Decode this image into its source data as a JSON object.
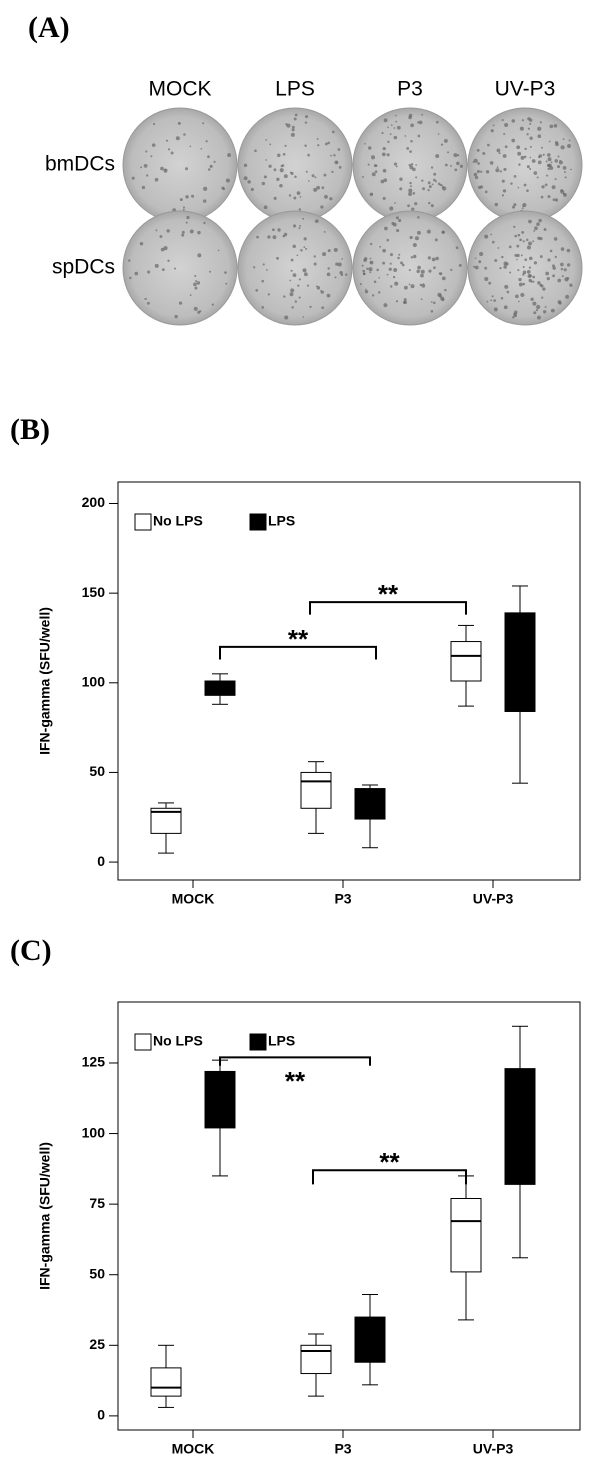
{
  "panel_labels": [
    "(A)",
    "(B)",
    "(C)"
  ],
  "panel_a": {
    "columns": [
      "MOCK",
      "LPS",
      "P3",
      "UV-P3"
    ],
    "rows": [
      "bmDCs",
      "spDCs"
    ]
  },
  "chart_data": [
    {
      "type": "box",
      "y_label": "IFN-gamma (SFU/well)",
      "categories": [
        "MOCK",
        "P3",
        "UV-P3"
      ],
      "series": [
        {
          "name": "No LPS",
          "color": "#ffffff",
          "min": [
            5,
            16,
            87
          ],
          "q1": [
            16,
            30,
            101
          ],
          "median": [
            28,
            45,
            115
          ],
          "q3": [
            30,
            50,
            123
          ],
          "max": [
            33,
            56,
            132
          ]
        },
        {
          "name": "LPS",
          "color": "#000000",
          "min": [
            88,
            8,
            44
          ],
          "q1": [
            93,
            24,
            84
          ],
          "median": [
            null,
            null,
            null
          ],
          "q3": [
            101,
            41,
            139
          ],
          "max": [
            105,
            43,
            154
          ]
        }
      ],
      "annotations": [
        "**",
        "**"
      ],
      "ylim": [
        -10,
        212
      ],
      "yticks": [
        0,
        50,
        100,
        150,
        200
      ]
    },
    {
      "type": "box",
      "y_label": "IFN-gamma (SFU/well)",
      "categories": [
        "MOCK",
        "P3",
        "UV-P3"
      ],
      "series": [
        {
          "name": "No LPS",
          "color": "#ffffff",
          "min": [
            3,
            7,
            34
          ],
          "q1": [
            7,
            15,
            51
          ],
          "median": [
            10,
            23,
            69
          ],
          "q3": [
            17,
            25,
            77
          ],
          "max": [
            25,
            29,
            85
          ]
        },
        {
          "name": "LPS",
          "color": "#000000",
          "min": [
            85,
            11,
            56
          ],
          "q1": [
            102,
            19,
            82
          ],
          "median": [
            null,
            null,
            null
          ],
          "q3": [
            122,
            35,
            123
          ],
          "max": [
            126,
            43,
            138
          ]
        }
      ],
      "annotations": [
        "**",
        "**"
      ],
      "ylim": [
        -5,
        146.6
      ],
      "yticks": [
        0,
        25,
        50,
        75,
        100,
        125
      ]
    }
  ]
}
